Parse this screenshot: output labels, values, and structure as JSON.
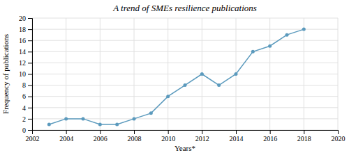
{
  "chart_data": {
    "type": "line",
    "title": "A trend of SMEs resilience publications",
    "xlabel": "Years*",
    "ylabel": "Frequency of publications",
    "x": [
      2003,
      2004,
      2005,
      2006,
      2007,
      2008,
      2009,
      2010,
      2011,
      2012,
      2013,
      2014,
      2015,
      2016,
      2017,
      2018
    ],
    "values": [
      1,
      2,
      2,
      1,
      1,
      2,
      3,
      6,
      8,
      10,
      8,
      10,
      14,
      15,
      17,
      18
    ],
    "color": "#5b9abd",
    "marker": "circle",
    "xlim": [
      2002,
      2020
    ],
    "ylim": [
      0,
      20
    ],
    "xticks": [
      2002,
      2004,
      2006,
      2008,
      2010,
      2012,
      2014,
      2016,
      2018,
      2020
    ],
    "yticks": [
      0,
      2,
      4,
      6,
      8,
      10,
      12,
      14,
      16,
      18,
      20
    ],
    "grid": true
  }
}
